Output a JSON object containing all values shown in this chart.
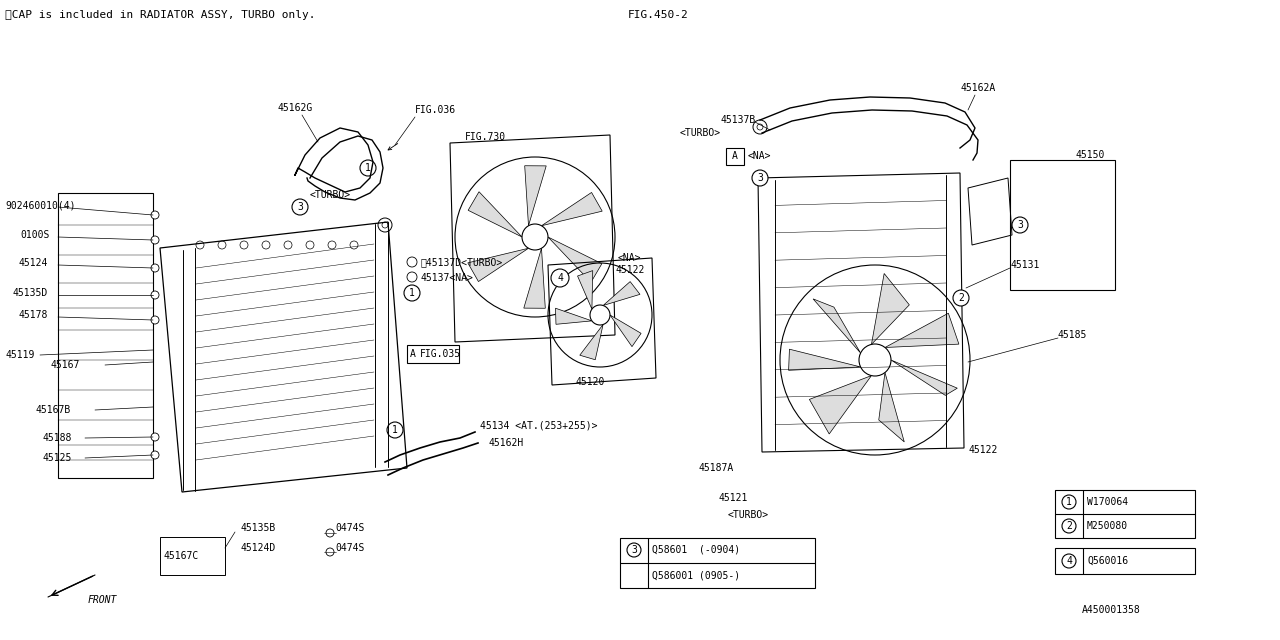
{
  "bg_color": "#ffffff",
  "line_color": "#000000",
  "header_note": "※CAP is included in RADIATOR ASSY, TURBO only.",
  "fig_ref_top": "FIG.450-2",
  "fig_ref1": "FIG.036",
  "fig_ref2": "FIG.730",
  "fig_ref3": "FIG.035",
  "ref_code": "A450001358",
  "label_902": "902460010(4)",
  "label_0100S": "0100S",
  "label_45124": "45124",
  "label_45135D": "45135D",
  "label_45178": "45178",
  "label_45119": "45119",
  "label_45167": "45167",
  "label_45167B": "45167B",
  "label_45188": "45188",
  "label_45125": "45125",
  "label_45162G": "45162G",
  "label_45137D": "※45137D<TURBO>",
  "label_45137NA": "45137<NA>",
  "label_45134": "45134 <AT.(253+255)>",
  "label_45162H": "45162H",
  "label_45120": "45120",
  "label_45122": "45122",
  "label_45187A": "45187A",
  "label_45121": "45121",
  "label_TURBO": "<TURBO>",
  "label_45162A": "45162A",
  "label_45137B": "45137B",
  "label_45150": "45150",
  "label_45131": "45131",
  "label_45185": "45185",
  "label_45167C": "45167C",
  "label_45135B": "45135B",
  "label_45124D": "45124D",
  "label_0474S": "0474S",
  "label_NA": "<NA>",
  "label_TURBO2": "<TURBO>",
  "label_FRONT": "FRONT",
  "leg1_num": "1",
  "leg1_code": "W170064",
  "leg2_num": "2",
  "leg2_code": "M250080",
  "leg3a": "Q58601  (-0904)",
  "leg3b": "Q586001 (0905-)",
  "leg4_num": "4",
  "leg4_code": "Q560016",
  "fs": 7,
  "fn": 8
}
